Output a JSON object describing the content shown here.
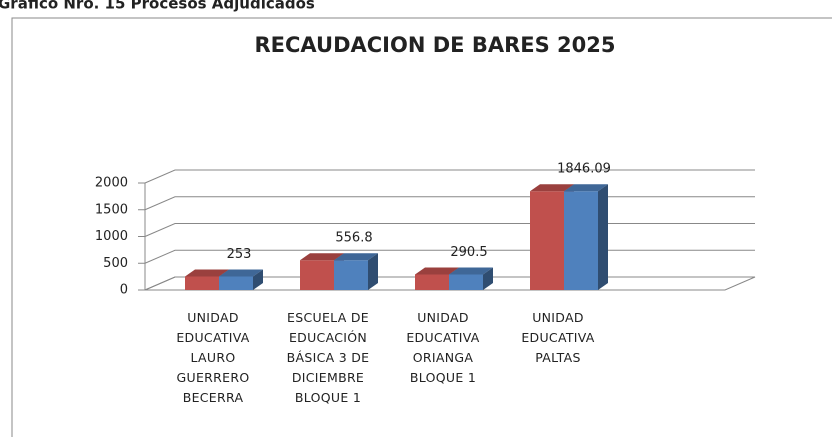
{
  "header": "Gráfico Nro. 15 Procesos Adjudicados",
  "chart_data": {
    "type": "bar3d",
    "title": "RECAUDACION DE BARES 2025",
    "categories": [
      "UNIDAD EDUCATIVA LAURO GUERRERO BECERRA",
      "ESCUELA DE EDUCACIÓN BÁSICA 3 DE DICIEMBRE BLOQUE 1",
      "UNIDAD EDUCATIVA ORIANGA BLOQUE 1",
      "UNIDAD EDUCATIVA PALTAS"
    ],
    "series": [
      {
        "color": "#c0504d",
        "values": [
          253,
          556.8,
          290.5,
          1846.09
        ]
      },
      {
        "color": "#4f81bd",
        "values": [
          253,
          556.8,
          290.5,
          1846.09
        ]
      }
    ],
    "ylim": [
      0,
      2000
    ],
    "yticks": [
      0,
      500,
      1000,
      1500,
      2000
    ],
    "grid": true
  }
}
